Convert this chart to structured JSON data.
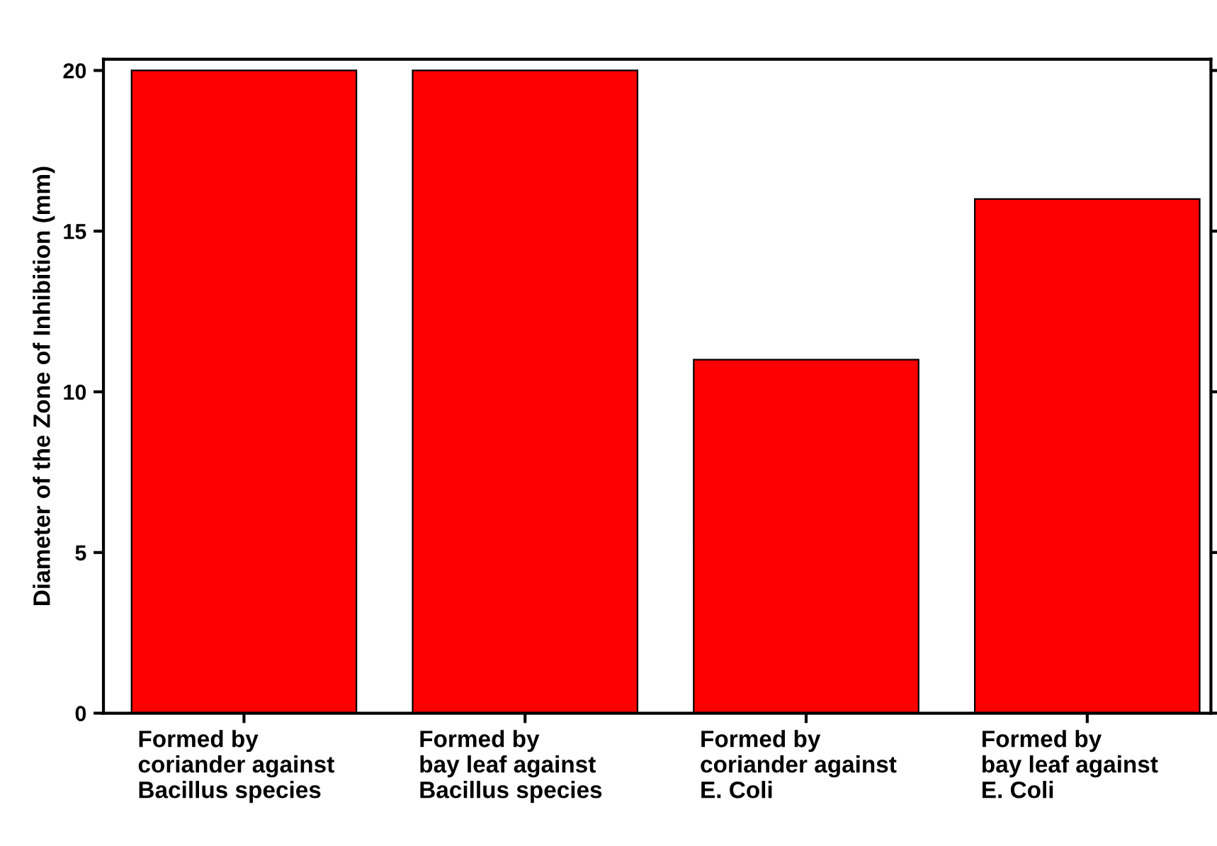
{
  "chart_data": {
    "type": "bar",
    "ylabel": "Diameter of the Zone of Inhibition (mm)",
    "categories": [
      "Formed by\ncoriander against\nBacillus species",
      "Formed by\nbay leaf against\nBacillus species",
      "Formed by\ncoriander against\nE. Coli",
      "Formed by\nbay leaf against\nE. Coli"
    ],
    "values": [
      20,
      20,
      11,
      16
    ],
    "color": "#ff0000",
    "ylim": [
      0,
      20.35
    ],
    "yticks": [
      0,
      5,
      10,
      15,
      20
    ],
    "grid": false,
    "legend": false
  }
}
